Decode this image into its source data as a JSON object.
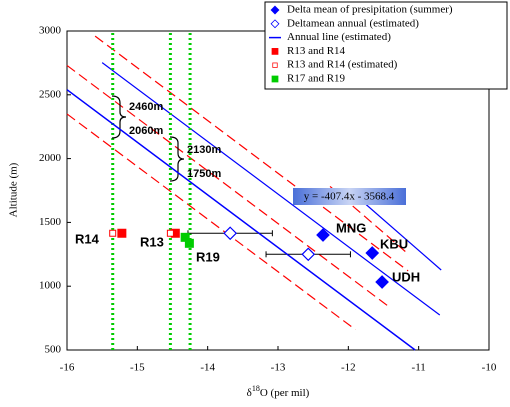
{
  "chart_data": {
    "type": "scatter",
    "x_label": [
      "δ",
      "18",
      "O (per mil)"
    ],
    "y_label": "Altitude (m)",
    "xlim": [
      -16,
      -10
    ],
    "ylim": [
      500,
      3000
    ],
    "xticks": [
      -16,
      -15,
      -14,
      -13,
      -12,
      -11,
      -10
    ],
    "yticks": [
      500,
      1000,
      1500,
      2000,
      2500,
      3000
    ],
    "legend": "top-right",
    "series": [
      {
        "name": "Delta mean of presipitation (summer)",
        "color": "#0000ff",
        "marker": "diamond-filled",
        "x": [
          -12.36,
          -11.66,
          -11.52
        ],
        "values": [
          1401,
          1260,
          1033
        ]
      },
      {
        "name": "Deltamean annual (estimated)",
        "color": "#0000ff",
        "marker": "diamond-open",
        "x": [
          -13.68,
          -12.57
        ],
        "values": [
          1415,
          1250
        ],
        "x_error": [
          0.6,
          0.6
        ]
      },
      {
        "name": "Annual line (estimated)",
        "color": "#0000ff",
        "marker": "line",
        "x": [
          -16,
          -11.05
        ],
        "values": [
          2540,
          500
        ]
      },
      {
        "name": "R13 and R14",
        "color": "#ff0000",
        "marker": "square-filled",
        "x": [
          -14.46,
          -15.22
        ],
        "values": [
          1415,
          1415
        ]
      },
      {
        "name": "R13 and R14 (estimated)",
        "color": "#ff0000",
        "marker": "square-open",
        "x": [
          -14.53,
          -15.35
        ],
        "values": [
          1415,
          1415
        ]
      },
      {
        "name": "R17 and R19",
        "color": "#00cc00",
        "marker": "square-filled",
        "x": [
          -14.32,
          -14.26
        ],
        "values": [
          1383,
          1336
        ]
      }
    ],
    "lines": [
      {
        "color": "#0000ff",
        "style": "solid",
        "x": [
          -15.5,
          -10.7
        ],
        "values": [
          2752,
          774
        ]
      },
      {
        "color": "#0000ff",
        "style": "solid",
        "x": [
          -11.87,
          -10.68
        ],
        "values": [
          1699,
          1127
        ]
      },
      {
        "color": "#ff0000",
        "style": "dashed",
        "x": [
          -16,
          -11.4
        ],
        "values": [
          2730,
          830
        ]
      },
      {
        "color": "#ff0000",
        "style": "dashed",
        "x": [
          -16,
          -11.9
        ],
        "values": [
          2350,
          660
        ]
      },
      {
        "color": "#ff0000",
        "style": "dashed",
        "x": [
          -15.6,
          -11.15
        ],
        "values": [
          2960,
          1120
        ]
      },
      {
        "color": "#ff0000",
        "style": "dashed",
        "x": [
          -12.26,
          -11.19
        ],
        "values": [
          1782,
          1272
        ]
      },
      {
        "color": "#00cc00",
        "style": "dotted",
        "x": [
          -15.35,
          -15.35
        ],
        "values": [
          500,
          3000
        ]
      },
      {
        "color": "#00cc00",
        "style": "dotted",
        "x": [
          -14.53,
          -14.53
        ],
        "values": [
          500,
          3000
        ]
      },
      {
        "color": "#00cc00",
        "style": "dotted",
        "x": [
          -14.25,
          -14.25
        ],
        "values": [
          500,
          3000
        ]
      }
    ],
    "point_labels": [
      "R14",
      "R13",
      "R19",
      "MNG",
      "KBU",
      "UDH"
    ],
    "annotations": [
      "2460m",
      "2060m",
      "2130m",
      "1750m"
    ],
    "equation": "y = -407.4x - 3568.4"
  }
}
